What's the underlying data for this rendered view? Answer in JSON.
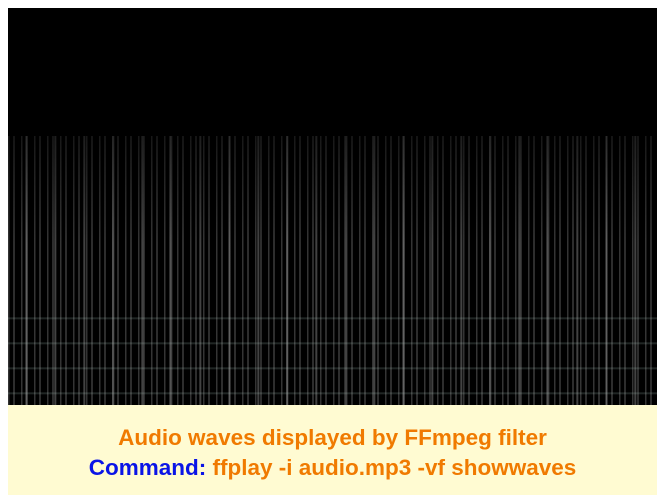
{
  "caption": {
    "line1": "Audio waves displayed by FFmpeg filter",
    "command_label": "Command:",
    "command": "ffplay -i audio.mp3 -vf showwaves"
  }
}
